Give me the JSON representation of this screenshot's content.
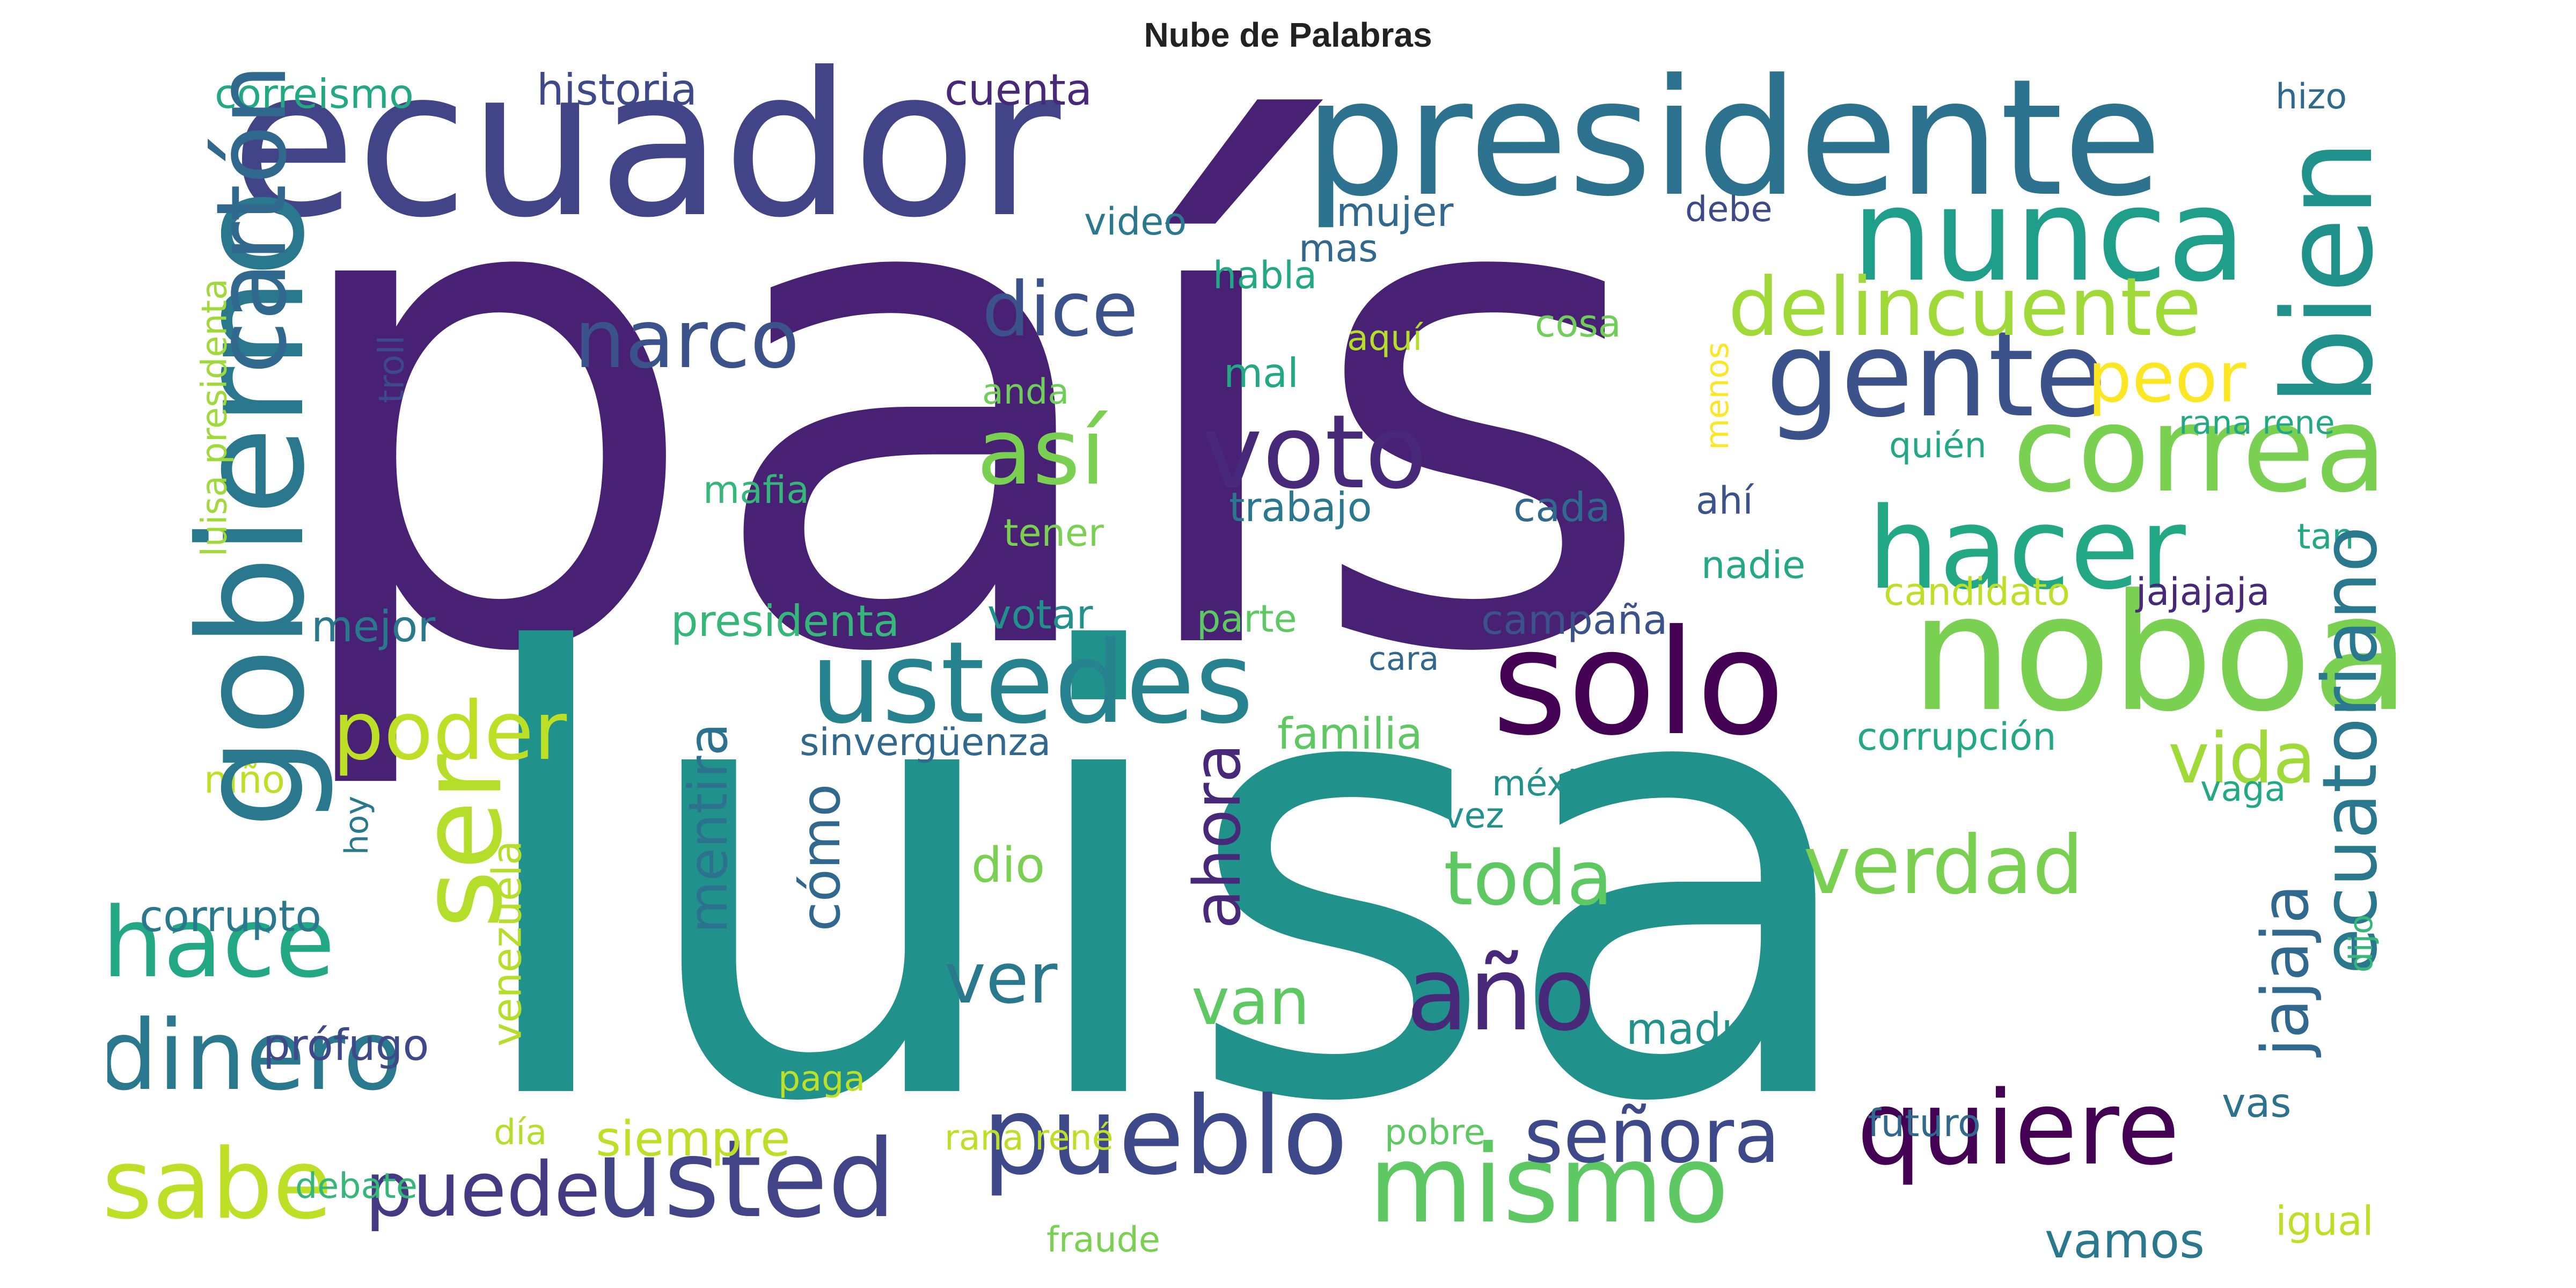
{
  "title": "Nube de Palabras",
  "palette": [
    "#440154",
    "#482878",
    "#3e4989",
    "#31688e",
    "#26828e",
    "#1f9e89",
    "#35b779",
    "#6ece58",
    "#b5de2b",
    "#fde725"
  ],
  "words": [
    {
      "text": "país",
      "color": "#482175",
      "vertical": false
    },
    {
      "text": "luisa",
      "color": "#21918c",
      "vertical": false
    },
    {
      "text": "ecuador",
      "color": "#414487",
      "vertical": false
    },
    {
      "text": "presidente",
      "color": "#2c728e",
      "vertical": false
    },
    {
      "text": "noboa",
      "color": "#7ad151",
      "vertical": false
    },
    {
      "text": "solo",
      "color": "#440154",
      "vertical": false
    },
    {
      "text": "nunca",
      "color": "#1f9e89",
      "vertical": false
    },
    {
      "text": "gente",
      "color": "#3b528b",
      "vertical": false
    },
    {
      "text": "correa",
      "color": "#7ad151",
      "vertical": false
    },
    {
      "text": "hacer",
      "color": "#22a884",
      "vertical": false
    },
    {
      "text": "ustedes",
      "color": "#26828e",
      "vertical": false
    },
    {
      "text": "usted",
      "color": "#414487",
      "vertical": false
    },
    {
      "text": "pueblo",
      "color": "#3e4989",
      "vertical": false
    },
    {
      "text": "mismo",
      "color": "#5ec962",
      "vertical": false
    },
    {
      "text": "quiere",
      "color": "#440154",
      "vertical": false
    },
    {
      "text": "dinero",
      "color": "#2a788e",
      "vertical": false
    },
    {
      "text": "sabe",
      "color": "#bddf26",
      "vertical": false
    },
    {
      "text": "voto",
      "color": "#482878",
      "vertical": false
    },
    {
      "text": "delincuente",
      "color": "#a0da39",
      "vertical": false
    },
    {
      "text": "año",
      "color": "#482878",
      "vertical": false
    },
    {
      "text": "hace",
      "color": "#22a884",
      "vertical": false
    },
    {
      "text": "así",
      "color": "#7ad151",
      "vertical": false
    },
    {
      "text": "verdad",
      "color": "#7ad151",
      "vertical": false
    },
    {
      "text": "narco",
      "color": "#3b528b",
      "vertical": false
    },
    {
      "text": "dice",
      "color": "#3b528b",
      "vertical": false
    },
    {
      "text": "poder",
      "color": "#bddf26",
      "vertical": false
    },
    {
      "text": "puede",
      "color": "#443983",
      "vertical": false
    },
    {
      "text": "señora",
      "color": "#3e4989",
      "vertical": false
    },
    {
      "text": "toda",
      "color": "#5ec962",
      "vertical": false
    },
    {
      "text": "ver",
      "color": "#2a788e",
      "vertical": false
    },
    {
      "text": "vida",
      "color": "#a0da39",
      "vertical": false
    },
    {
      "text": "peor",
      "color": "#fde725",
      "vertical": false
    },
    {
      "text": "van",
      "color": "#5ec962",
      "vertical": false
    },
    {
      "text": "siempre",
      "color": "#bddf26",
      "vertical": false
    },
    {
      "text": "vamos",
      "color": "#2a788e",
      "vertical": false
    },
    {
      "text": "dio",
      "color": "#7ad151",
      "vertical": false
    },
    {
      "text": "maduro",
      "color": "#21918c",
      "vertical": false
    },
    {
      "text": "prófugo",
      "color": "#3e4989",
      "vertical": false
    },
    {
      "text": "corrupto",
      "color": "#2a788e",
      "vertical": false
    },
    {
      "text": "historia",
      "color": "#3e4989",
      "vertical": false
    },
    {
      "text": "cuenta",
      "color": "#482878",
      "vertical": false
    },
    {
      "text": "correismo",
      "color": "#22a884",
      "vertical": false
    },
    {
      "text": "mujer",
      "color": "#31688e",
      "vertical": false
    },
    {
      "text": "mas",
      "color": "#31688e",
      "vertical": false
    },
    {
      "text": "video",
      "color": "#2a788e",
      "vertical": false
    },
    {
      "text": "debe",
      "color": "#3e4989",
      "vertical": false
    },
    {
      "text": "hizo",
      "color": "#31688e",
      "vertical": false
    },
    {
      "text": "habla",
      "color": "#22a884",
      "vertical": false
    },
    {
      "text": "aquí",
      "color": "#b5de2b",
      "vertical": false
    },
    {
      "text": "cosa",
      "color": "#6ece58",
      "vertical": false
    },
    {
      "text": "mal",
      "color": "#22a884",
      "vertical": false
    },
    {
      "text": "anda",
      "color": "#6ece58",
      "vertical": false
    },
    {
      "text": "quién",
      "color": "#22a884",
      "vertical": false
    },
    {
      "text": "rana rene",
      "color": "#22a884",
      "vertical": false
    },
    {
      "text": "mafia",
      "color": "#35b779",
      "vertical": false
    },
    {
      "text": "tener",
      "color": "#7ad151",
      "vertical": false
    },
    {
      "text": "trabajo",
      "color": "#2a788e",
      "vertical": false
    },
    {
      "text": "cada",
      "color": "#31688e",
      "vertical": false
    },
    {
      "text": "ahí",
      "color": "#3b528b",
      "vertical": false
    },
    {
      "text": "nadie",
      "color": "#22a884",
      "vertical": false
    },
    {
      "text": "tan",
      "color": "#22a884",
      "vertical": false
    },
    {
      "text": "candidato",
      "color": "#bddf26",
      "vertical": false
    },
    {
      "text": "jajajaja",
      "color": "#482878",
      "vertical": false
    },
    {
      "text": "mejor",
      "color": "#2a788e",
      "vertical": false
    },
    {
      "text": "presidenta",
      "color": "#35b779",
      "vertical": false
    },
    {
      "text": "votar",
      "color": "#21918c",
      "vertical": false
    },
    {
      "text": "parte",
      "color": "#5ec962",
      "vertical": false
    },
    {
      "text": "campaña",
      "color": "#3b528b",
      "vertical": false
    },
    {
      "text": "cara",
      "color": "#31688e",
      "vertical": false
    },
    {
      "text": "familia",
      "color": "#5ec962",
      "vertical": false
    },
    {
      "text": "sinvergüenza",
      "color": "#31688e",
      "vertical": false
    },
    {
      "text": "corrupción",
      "color": "#22a884",
      "vertical": false
    },
    {
      "text": "méxico",
      "color": "#21918c",
      "vertical": false
    },
    {
      "text": "vez",
      "color": "#21918c",
      "vertical": false
    },
    {
      "text": "vaga",
      "color": "#22a884",
      "vertical": false
    },
    {
      "text": "niño",
      "color": "#bddf26",
      "vertical": false
    },
    {
      "text": "paga",
      "color": "#bddf26",
      "vertical": false
    },
    {
      "text": "día",
      "color": "#b5de2b",
      "vertical": false
    },
    {
      "text": "rana rené",
      "color": "#bddf26",
      "vertical": false
    },
    {
      "text": "pobre",
      "color": "#5ec962",
      "vertical": false
    },
    {
      "text": "futuro",
      "color": "#31688e",
      "vertical": false
    },
    {
      "text": "vas",
      "color": "#2c728e",
      "vertical": false
    },
    {
      "text": "igual",
      "color": "#bddf26",
      "vertical": false
    },
    {
      "text": "debate",
      "color": "#35b779",
      "vertical": false
    },
    {
      "text": "fraude",
      "color": "#7ad151",
      "vertical": false
    },
    {
      "text": "gobierno",
      "color": "#2a788e",
      "vertical": true
    },
    {
      "text": "cartón",
      "color": "#31688e",
      "vertical": true
    },
    {
      "text": "luisa presidenta",
      "color": "#a0da39",
      "vertical": true
    },
    {
      "text": "troll",
      "color": "#3e4989",
      "vertical": true
    },
    {
      "text": "ser",
      "color": "#b5de2b",
      "vertical": true
    },
    {
      "text": "mentira",
      "color": "#2c728e",
      "vertical": true
    },
    {
      "text": "cómo",
      "color": "#31688e",
      "vertical": true
    },
    {
      "text": "ahora",
      "color": "#482878",
      "vertical": true
    },
    {
      "text": "bien",
      "color": "#21918c",
      "vertical": true
    },
    {
      "text": "ecuatoriano",
      "color": "#2a788e",
      "vertical": true
    },
    {
      "text": "jajaja",
      "color": "#31688e",
      "vertical": true
    },
    {
      "text": "menos",
      "color": "#fde725",
      "vertical": true
    },
    {
      "text": "dijo",
      "color": "#35b779",
      "vertical": true
    },
    {
      "text": "venezuela",
      "color": "#b5de2b",
      "vertical": true
    },
    {
      "text": "hoy",
      "color": "#2a788e",
      "vertical": true
    }
  ]
}
